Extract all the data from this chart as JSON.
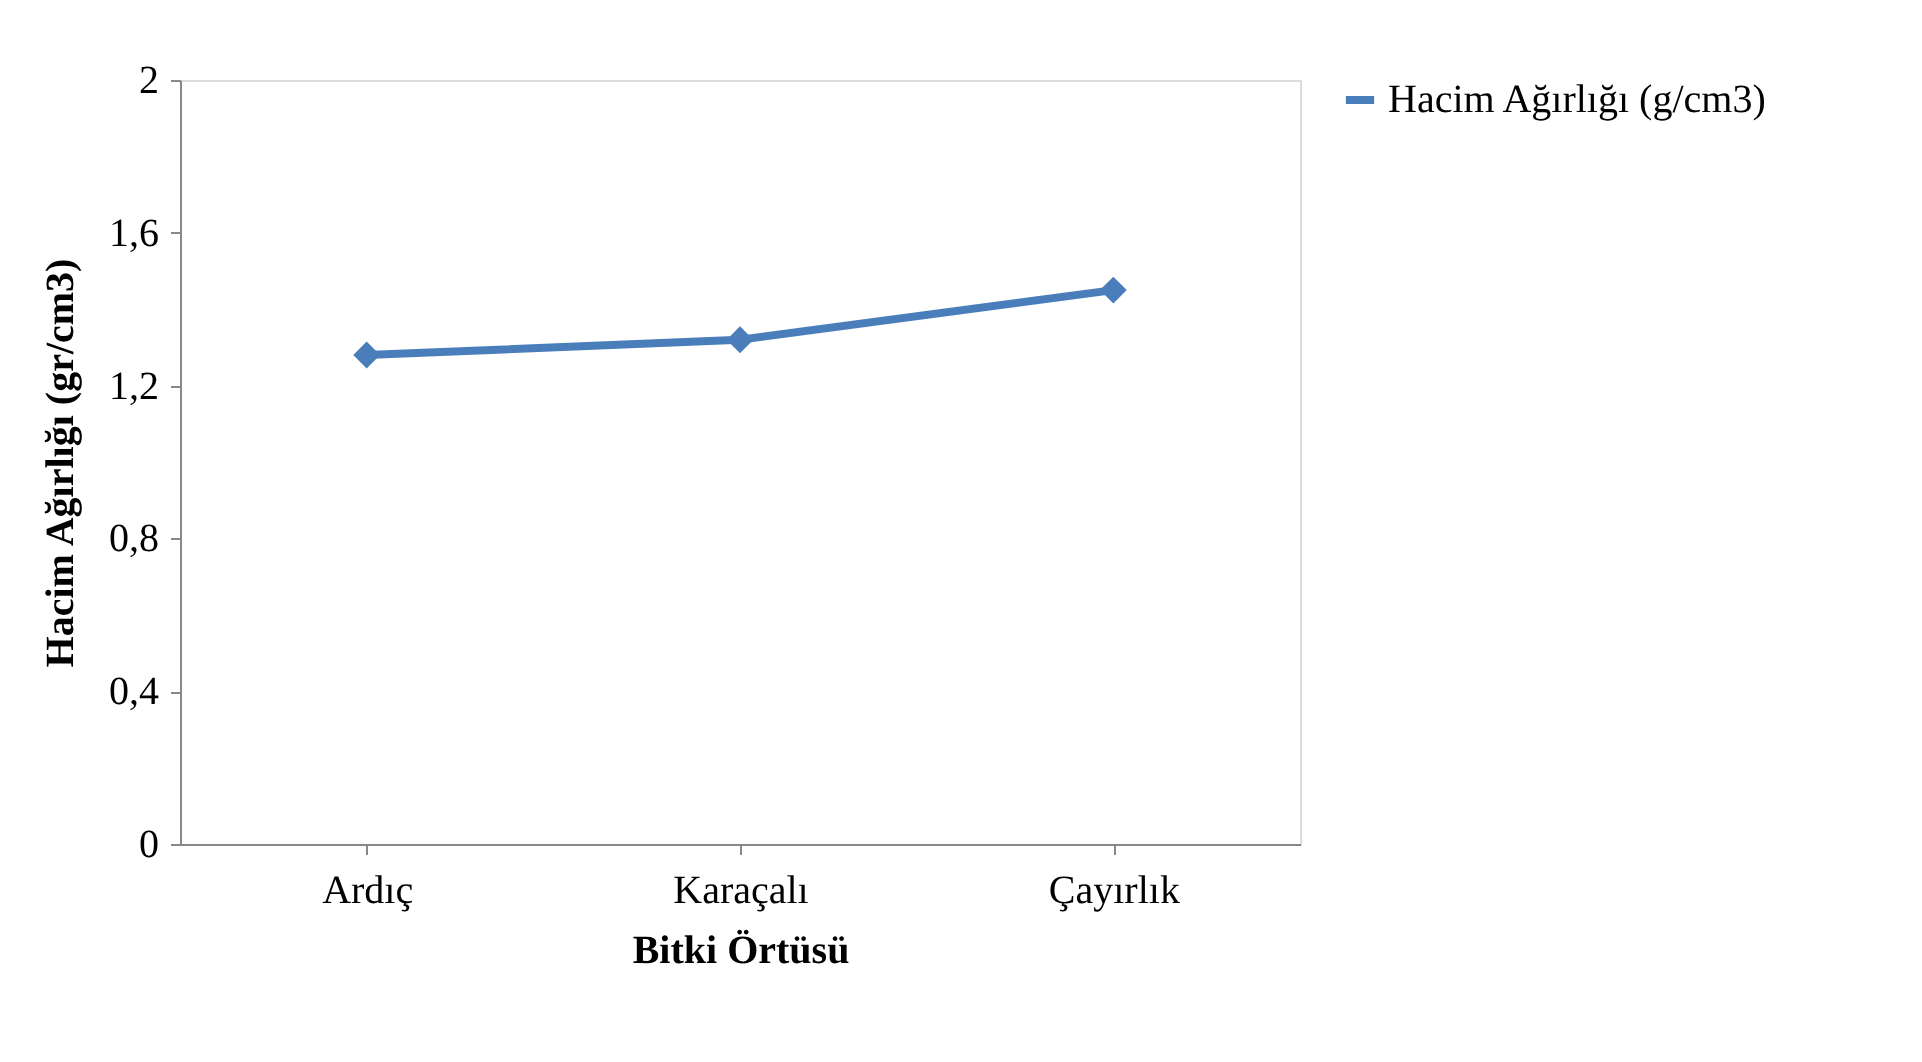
{
  "chart_data": {
    "type": "line",
    "xlabel": "Bitki Örtüsü",
    "ylabel": "Hacim Ağırlığı (gr/cm3)",
    "categories": [
      "Ardıç",
      "Karaçalı",
      "Çayırlık"
    ],
    "series": [
      {
        "name": "Hacim Ağırlığı (g/cm3)",
        "color": "#4a7ebb",
        "values": [
          1.28,
          1.32,
          1.45
        ]
      }
    ],
    "ylim": [
      0,
      2
    ],
    "yticks": [
      0,
      {
        "value": 0.4,
        "label": "0,4"
      },
      {
        "value": 0.8,
        "label": "0,8"
      },
      {
        "value": 1.2,
        "label": "1,2"
      },
      {
        "value": 1.6,
        "label": "1,6"
      },
      2
    ],
    "grid": false,
    "legend": "right",
    "marker": "diamond",
    "line_style": "solid"
  }
}
